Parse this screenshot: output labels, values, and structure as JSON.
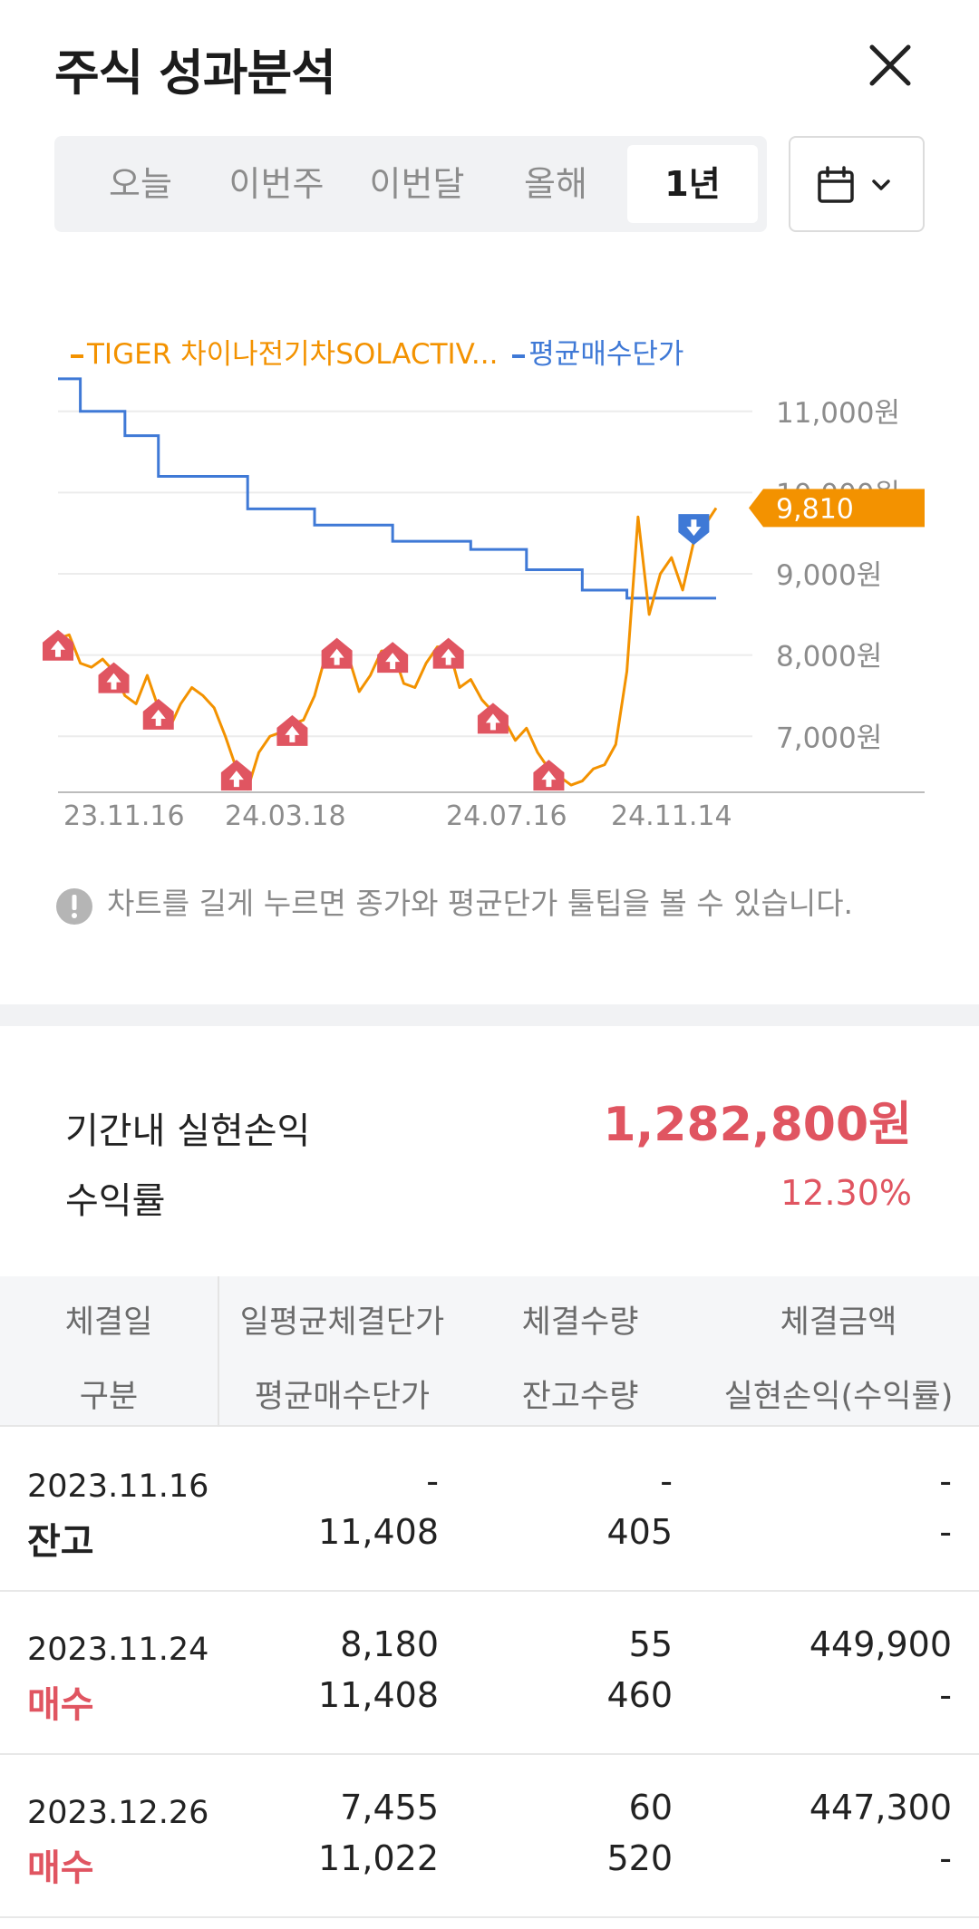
{
  "header": {
    "title": "주식 성과분석"
  },
  "period_tabs": [
    {
      "label": "오늘",
      "active": false
    },
    {
      "label": "이번주",
      "active": false
    },
    {
      "label": "이번달",
      "active": false
    },
    {
      "label": "올해",
      "active": false
    },
    {
      "label": "1년",
      "active": true
    }
  ],
  "chart_data": {
    "type": "line",
    "series": [
      {
        "name": "TIGER 차이나전기차SOLACTIV...",
        "color": "#f39200",
        "values": [
          8200,
          8250,
          7900,
          7850,
          7950,
          7800,
          7500,
          7400,
          7750,
          7350,
          7100,
          7400,
          7600,
          7500,
          7350,
          7000,
          6600,
          6350,
          6800,
          7000,
          7050,
          7150,
          7200,
          7500,
          8000,
          8100,
          8000,
          7550,
          7750,
          8050,
          8050,
          7650,
          7600,
          7900,
          8100,
          8100,
          7600,
          7700,
          7450,
          7300,
          7200,
          6950,
          7100,
          6800,
          6600,
          6500,
          6400,
          6450,
          6600,
          6650,
          6900,
          7800,
          9700,
          8500,
          9000,
          9200,
          8800,
          9400,
          9600,
          9810
        ]
      },
      {
        "name": "평균매수단가",
        "color": "#3f79d6",
        "values": [
          11400,
          11400,
          11000,
          11000,
          11000,
          11000,
          10700,
          10700,
          10700,
          10200,
          10200,
          10200,
          10200,
          10200,
          10200,
          10200,
          10200,
          9800,
          9800,
          9800,
          9800,
          9800,
          9800,
          9600,
          9600,
          9600,
          9600,
          9600,
          9600,
          9600,
          9400,
          9400,
          9400,
          9400,
          9400,
          9400,
          9400,
          9300,
          9300,
          9300,
          9300,
          9300,
          9050,
          9050,
          9050,
          9050,
          9050,
          8800,
          8800,
          8800,
          8800,
          8700,
          8700,
          8700,
          8700,
          8700,
          8700,
          8700,
          8700,
          8700
        ]
      }
    ],
    "x_ticks": [
      "23.11.16",
      "24.03.18",
      "24.07.16",
      "24.11.14"
    ],
    "y_ticks": [
      "11,000원",
      "10,000원",
      "9,000원",
      "8,000원",
      "7,000원"
    ],
    "ylim": [
      6300,
      11600
    ],
    "current_price_label": "9,810",
    "buy_markers": [
      0,
      5,
      9,
      16,
      21,
      25,
      30,
      35,
      39,
      44
    ],
    "sell_markers": [
      57
    ]
  },
  "notice": {
    "text": "차트를 길게 누르면 종가와 평균단가 툴팁을 볼 수 있습니다."
  },
  "summary": {
    "realized_label": "기간내 실현손익",
    "realized_value": "1,282,800원",
    "return_label": "수익률",
    "return_value": "12.30%"
  },
  "table": {
    "headers_row1": [
      "체결일",
      "일평균체결단가",
      "체결수량",
      "체결금액"
    ],
    "headers_row2": [
      "구분",
      "평균매수단가",
      "잔고수량",
      "실현손익(수익률)"
    ],
    "rows": [
      {
        "date": "2023.11.16",
        "kind": "잔고",
        "kind_type": "hold",
        "price": "-",
        "avg_price": "11,408",
        "qty": "-",
        "balance": "405",
        "amount": "-",
        "pnl": "-"
      },
      {
        "date": "2023.11.24",
        "kind": "매수",
        "kind_type": "buy",
        "price": "8,180",
        "avg_price": "11,408",
        "qty": "55",
        "balance": "460",
        "amount": "449,900",
        "pnl": "-"
      },
      {
        "date": "2023.12.26",
        "kind": "매수",
        "kind_type": "buy",
        "price": "7,455",
        "avg_price": "11,022",
        "qty": "60",
        "balance": "520",
        "amount": "447,300",
        "pnl": "-"
      }
    ]
  },
  "colors": {
    "accent_orange": "#f39200",
    "accent_blue": "#3f79d6",
    "profit_red": "#e05561",
    "buy_marker": "#e05561"
  },
  "icons": {
    "close": "close-icon",
    "calendar": "calendar-icon",
    "dropdown": "chevron-down-icon",
    "info": "info-icon"
  }
}
